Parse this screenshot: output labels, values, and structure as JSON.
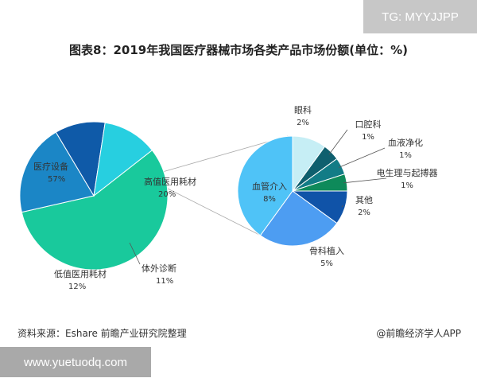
{
  "watermark_tag": "TG: MYYJJPP",
  "title": "图表8：2019年我国医疗器械市场各类产品市场份额(单位：%)",
  "source": "资料来源：Eshare 前瞻产业研究院整理",
  "brand": "@前瞻经济学人APP",
  "site": "www.yuetuodq.com",
  "chart_data": [
    {
      "type": "pie",
      "unit": "%",
      "slices": [
        {
          "label": "医疗设备",
          "value": 57,
          "color": "#19c99c"
        },
        {
          "label": "高值医用耗材",
          "value": 20,
          "color": "#1b86c6"
        },
        {
          "label": "体外诊断",
          "value": 11,
          "color": "#0f5aa8"
        },
        {
          "label": "低值医用耗材",
          "value": 12,
          "color": "#27cfe0"
        }
      ]
    },
    {
      "type": "pie",
      "unit": "%",
      "breakdown_of": "高值医用耗材",
      "slices": [
        {
          "label": "眼科",
          "value": 2,
          "color": "#c6eef5"
        },
        {
          "label": "口腔科",
          "value": 1,
          "color": "#0f5f6e"
        },
        {
          "label": "血液净化",
          "value": 1,
          "color": "#127c86"
        },
        {
          "label": "电生理与起搏器",
          "value": 1,
          "color": "#0e8a5a"
        },
        {
          "label": "其他",
          "value": 2,
          "color": "#1053a8"
        },
        {
          "label": "骨科植入",
          "value": 5,
          "color": "#4d9df2"
        },
        {
          "label": "血管介入",
          "value": 8,
          "color": "#4fc3f7"
        }
      ]
    }
  ]
}
